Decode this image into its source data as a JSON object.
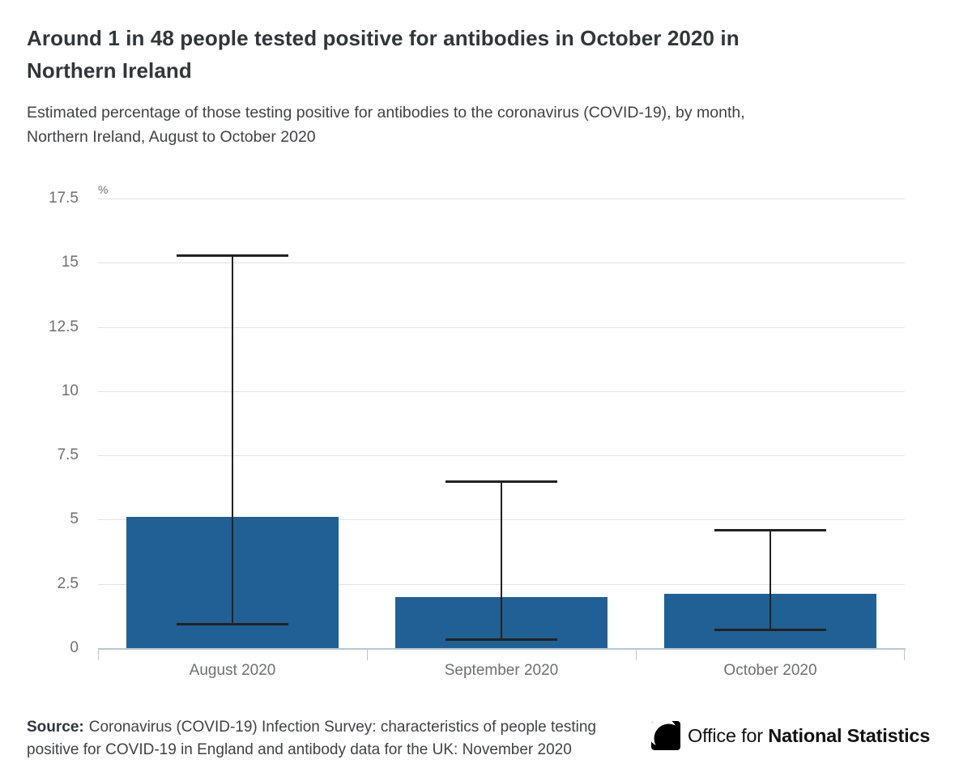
{
  "header": {
    "title_lines": [
      "Around 1 in 48 people tested positive for antibodies in October 2020 in",
      "Northern Ireland"
    ],
    "subtitle_lines": [
      "Estimated percentage of those testing positive for antibodies to the coronavirus (COVID-19), by month,",
      "Northern Ireland, August to October 2020"
    ]
  },
  "chart_data": {
    "type": "bar",
    "title": "Around 1 in 48 people tested positive for antibodies in October 2020 in Northern Ireland",
    "subtitle": "Estimated percentage of those testing positive for antibodies to the coronavirus (COVID-19), by month, Northern Ireland, August to October 2020",
    "categories": [
      "August 2020",
      "September 2020",
      "October 2020"
    ],
    "values": [
      5.1,
      2.0,
      2.1
    ],
    "error_low": [
      0.9,
      0.3,
      0.7
    ],
    "error_high": [
      15.3,
      6.5,
      4.6
    ],
    "unit_label": "%",
    "xlabel": "",
    "ylabel": "%",
    "ylim": [
      0,
      17.5
    ],
    "ytick_step": 2.5,
    "ytick_labels": [
      "0",
      "2.5",
      "5",
      "7.5",
      "10",
      "12.5",
      "15",
      "17.5"
    ],
    "grid": true,
    "legend": "none",
    "bar_color": "#206095",
    "error_bar_color": "#222222"
  },
  "footer": {
    "source_label": "Source:",
    "source_lines": [
      "Coronavirus (COVID-19) Infection Survey: characteristics of people testing",
      "positive for COVID-19 in England and antibody data for the UK: November 2020"
    ],
    "logo": {
      "org_name_regular": "Office for ",
      "org_name_bold": "National Statistics"
    }
  }
}
